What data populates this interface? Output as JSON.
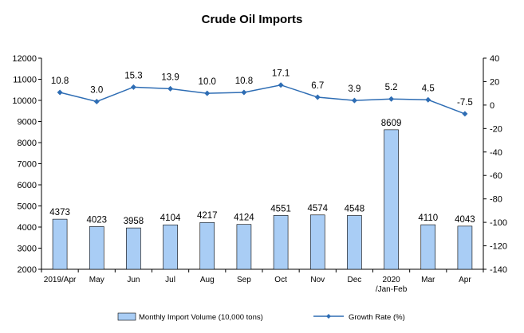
{
  "chart_data": {
    "type": "bar+line",
    "title": "Crude Oil Imports",
    "categories": [
      "2019/Apr",
      "May",
      "Jun",
      "Jul",
      "Aug",
      "Sep",
      "Oct",
      "Nov",
      "Dec",
      "2020 /Jan-Feb",
      "Mar",
      "Apr"
    ],
    "series": [
      {
        "name": "Monthly Import Volume (10,000 tons)",
        "type": "bar",
        "axis": "left",
        "color": "#a9cdf5",
        "values": [
          4373,
          4023,
          3958,
          4104,
          4217,
          4124,
          4551,
          4574,
          4548,
          8609,
          4110,
          4043
        ],
        "labels": [
          "4373",
          "4023",
          "3958",
          "4104",
          "4217",
          "4124",
          "4551",
          "4574",
          "4548",
          "8609",
          "4110",
          "4043"
        ]
      },
      {
        "name": "Growth Rate (%)",
        "type": "line",
        "axis": "right",
        "color": "#2e6db4",
        "values": [
          10.8,
          3.0,
          15.3,
          13.9,
          10.0,
          10.8,
          17.1,
          6.7,
          3.9,
          5.2,
          4.5,
          -7.5
        ],
        "labels": [
          "10.8",
          "3.0",
          "15.3",
          "13.9",
          "10.0",
          "10.8",
          "17.1",
          "6.7",
          "3.9",
          "5.2",
          "4.5",
          "-7.5"
        ]
      }
    ],
    "y_left": {
      "range": [
        2000,
        12000
      ],
      "ticks": [
        "2000",
        "3000",
        "4000",
        "5000",
        "6000",
        "7000",
        "8000",
        "9000",
        "10000",
        "11000",
        "12000"
      ]
    },
    "y_right": {
      "range": [
        -140,
        40
      ],
      "ticks": [
        "-140",
        "-120",
        "-100",
        "-80",
        "-60",
        "-40",
        "-20",
        "0",
        "20",
        "40"
      ]
    },
    "grid": false,
    "legend_position": "bottom"
  }
}
